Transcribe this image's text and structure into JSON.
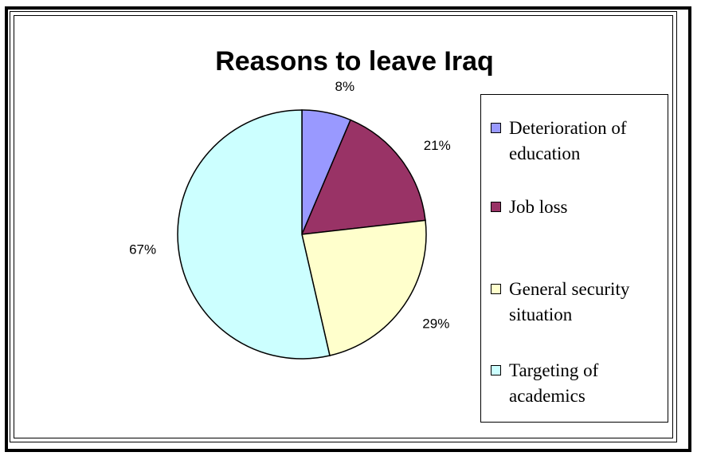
{
  "chart_data": {
    "type": "pie",
    "title": "Reasons to leave Iraq",
    "slices": [
      {
        "label": "Deterioration of education",
        "value": 8,
        "value_label": "8%",
        "color": "#9999ff"
      },
      {
        "label": "Job loss",
        "value": 21,
        "value_label": "21%",
        "color": "#993366"
      },
      {
        "label": "General security situation",
        "value": 29,
        "value_label": "29%",
        "color": "#ffffcc"
      },
      {
        "label": "Targeting of academics",
        "value": 67,
        "value_label": "67%",
        "color": "#ccffff"
      }
    ],
    "legend_position": "right"
  }
}
